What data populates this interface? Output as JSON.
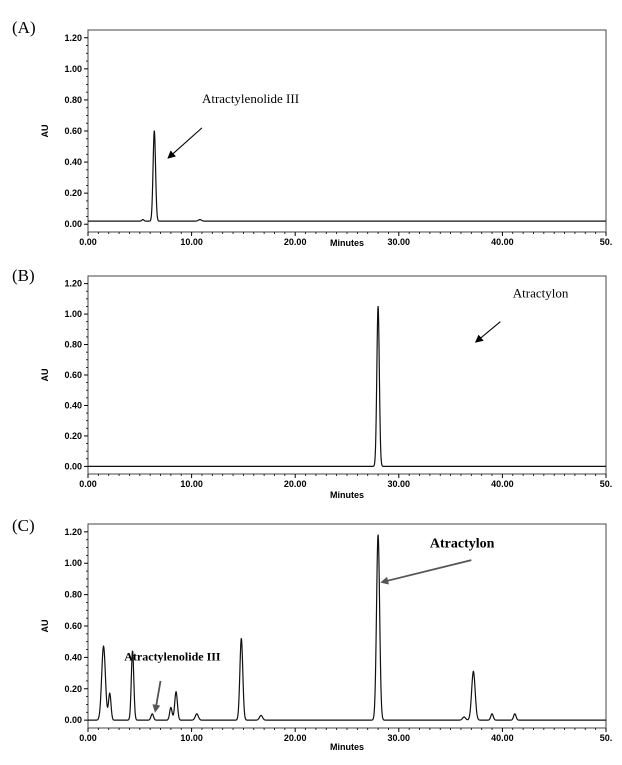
{
  "panels": [
    {
      "label": "(A)"
    },
    {
      "label": "(B)"
    },
    {
      "label": "(C)"
    }
  ],
  "chart_data": [
    {
      "type": "line",
      "title": "",
      "xlabel": "Minutes",
      "ylabel": "AU",
      "xlim": [
        0,
        50
      ],
      "ylim": [
        -0.05,
        1.25
      ],
      "x_ticks": [
        "0.00",
        "10.00",
        "20.00",
        "30.00",
        "40.00",
        "50."
      ],
      "y_ticks": [
        "0.00",
        "0.20",
        "0.40",
        "0.60",
        "0.80",
        "1.00",
        "1.20"
      ],
      "baseline": 0.02,
      "peaks": [
        {
          "rt": 6.4,
          "height": 0.58,
          "width": 0.12
        },
        {
          "rt": 5.3,
          "height": 0.01,
          "width": 0.1
        },
        {
          "rt": 10.8,
          "height": 0.01,
          "width": 0.15
        }
      ],
      "annotations": [
        {
          "text": "Atractylenolide  III",
          "x": 11.0,
          "y": 0.78,
          "size": 13,
          "bold": false,
          "arrow_from": [
            11.0,
            0.62
          ],
          "arrow_to": [
            7.8,
            0.43
          ],
          "arrow_color": "#000000"
        }
      ]
    },
    {
      "type": "line",
      "title": "",
      "xlabel": "Minutes",
      "ylabel": "AU",
      "xlim": [
        0,
        50
      ],
      "ylim": [
        -0.05,
        1.25
      ],
      "x_ticks": [
        "0.00",
        "10.00",
        "20.00",
        "30.00",
        "40.00",
        "50."
      ],
      "y_ticks": [
        "0.00",
        "0.20",
        "0.40",
        "0.60",
        "0.80",
        "1.00",
        "1.20"
      ],
      "baseline": 0.0,
      "peaks": [
        {
          "rt": 28.0,
          "height": 1.05,
          "width": 0.12
        }
      ],
      "annotations": [
        {
          "text": "Atractylon",
          "x": 41.0,
          "y": 1.11,
          "size": 13,
          "bold": false,
          "arrow_from": [
            39.8,
            0.95
          ],
          "arrow_to": [
            37.5,
            0.82
          ],
          "arrow_color": "#000000"
        }
      ]
    },
    {
      "type": "line",
      "title": "",
      "xlabel": "Minutes",
      "ylabel": "AU",
      "xlim": [
        0,
        50
      ],
      "ylim": [
        -0.05,
        1.25
      ],
      "x_ticks": [
        "0.00",
        "10.00",
        "20.00",
        "30.00",
        "40.00",
        "50."
      ],
      "y_ticks": [
        "0.00",
        "0.20",
        "0.40",
        "0.60",
        "0.80",
        "1.00",
        "1.20"
      ],
      "baseline": 0.0,
      "peaks": [
        {
          "rt": 1.5,
          "height": 0.47,
          "width": 0.18
        },
        {
          "rt": 2.1,
          "height": 0.17,
          "width": 0.12
        },
        {
          "rt": 4.3,
          "height": 0.44,
          "width": 0.12
        },
        {
          "rt": 6.2,
          "height": 0.04,
          "width": 0.12
        },
        {
          "rt": 8.0,
          "height": 0.08,
          "width": 0.12
        },
        {
          "rt": 8.5,
          "height": 0.18,
          "width": 0.13
        },
        {
          "rt": 10.5,
          "height": 0.04,
          "width": 0.15
        },
        {
          "rt": 14.8,
          "height": 0.52,
          "width": 0.14
        },
        {
          "rt": 16.7,
          "height": 0.03,
          "width": 0.15
        },
        {
          "rt": 28.0,
          "height": 1.18,
          "width": 0.15
        },
        {
          "rt": 36.3,
          "height": 0.02,
          "width": 0.15
        },
        {
          "rt": 37.2,
          "height": 0.31,
          "width": 0.17
        },
        {
          "rt": 39.0,
          "height": 0.04,
          "width": 0.12
        },
        {
          "rt": 41.2,
          "height": 0.04,
          "width": 0.12
        }
      ],
      "annotations": [
        {
          "text": "Atractylenolide III",
          "x": 3.5,
          "y": 0.38,
          "size": 12,
          "bold": true,
          "arrow_from": [
            7.0,
            0.25
          ],
          "arrow_to": [
            6.5,
            0.06
          ],
          "arrow_color": "#555555"
        },
        {
          "text": "Atractylon",
          "x": 33.0,
          "y": 1.1,
          "size": 14,
          "bold": true,
          "arrow_from": [
            37.0,
            1.02
          ],
          "arrow_to": [
            28.4,
            0.88
          ],
          "arrow_color": "#555555"
        }
      ]
    }
  ]
}
